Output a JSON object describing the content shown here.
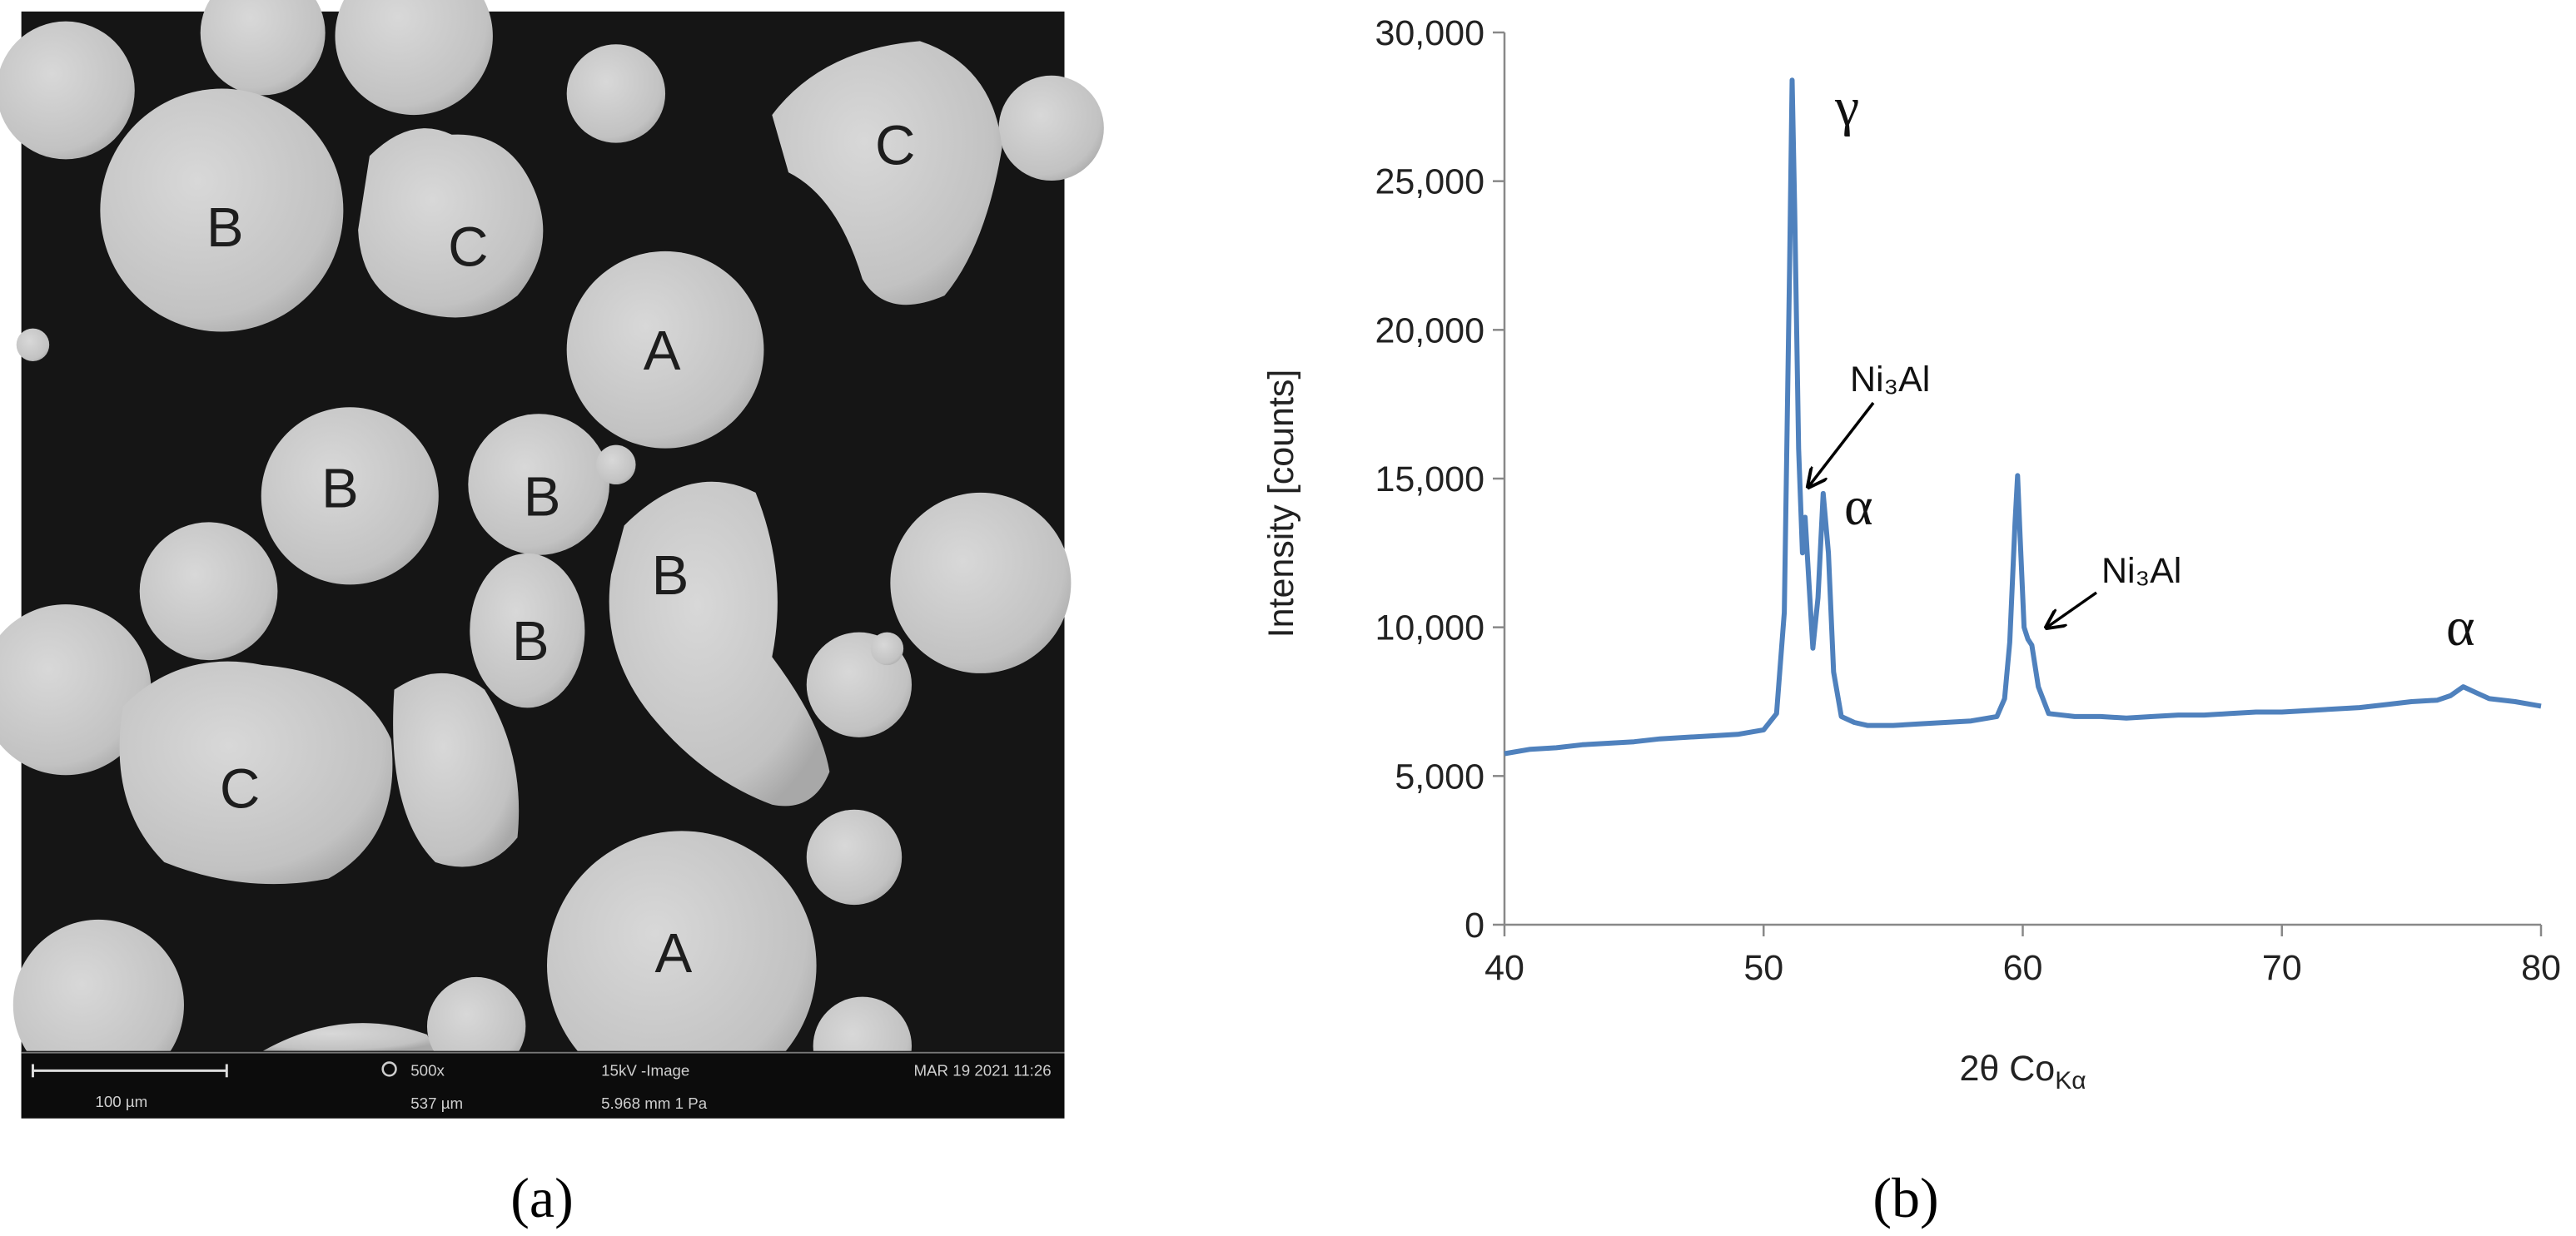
{
  "panel_a": {
    "labels": [
      "B",
      "C",
      "A",
      "B",
      "B",
      "B",
      "B",
      "C",
      "A",
      "C"
    ],
    "scale_bar": "100 µm",
    "magnification": "500x",
    "field_width": "537 µm",
    "mode": "15kV -Image",
    "working": "5.968 mm   1 Pa",
    "date": "MAR 19 2021 11:26"
  },
  "captions": [
    "(a)",
    "(b)"
  ],
  "chart_data": {
    "type": "line",
    "ylabel": "Intensity [counts]",
    "xlabel": {
      "text": "2θ Co",
      "subscript": "Kα"
    },
    "annotations": [
      "γ",
      "Ni₃Al",
      "α",
      "Ni₃Al",
      "α"
    ],
    "color": "#4f81bd",
    "xlim": [
      40,
      80
    ],
    "xticks": [
      40,
      50,
      60,
      70,
      80
    ],
    "ylim": [
      0,
      30000
    ],
    "yticks": [
      0,
      {
        "value": 5000,
        "label": "5,000"
      },
      {
        "value": 10000,
        "label": "10,000"
      },
      {
        "value": 15000,
        "label": "15,000"
      },
      {
        "value": 20000,
        "label": "20,000"
      },
      {
        "value": 25000,
        "label": "25,000"
      },
      {
        "value": 30000,
        "label": "30,000"
      }
    ],
    "x": [
      40,
      41,
      42,
      43,
      44,
      45,
      46,
      47,
      48,
      49,
      50,
      50.5,
      50.8,
      51,
      51.1,
      51.2,
      51.35,
      51.5,
      51.6,
      51.75,
      51.9,
      52.1,
      52.3,
      52.5,
      52.7,
      53,
      53.5,
      54,
      55,
      56,
      57,
      58,
      59,
      59.3,
      59.5,
      59.7,
      59.8,
      59.9,
      60.05,
      60.2,
      60.35,
      60.6,
      61,
      62,
      63,
      64,
      65,
      66,
      67,
      68,
      69,
      70,
      71,
      72,
      73,
      74,
      75,
      76,
      76.5,
      77,
      77.5,
      78,
      79,
      80
    ],
    "values": [
      5750,
      5900,
      5950,
      6050,
      6100,
      6150,
      6250,
      6300,
      6350,
      6400,
      6550,
      7100,
      10500,
      22000,
      28400,
      24000,
      16000,
      12500,
      13700,
      11500,
      9300,
      11000,
      14500,
      12500,
      8500,
      7000,
      6800,
      6700,
      6700,
      6750,
      6800,
      6850,
      7000,
      7600,
      9500,
      13500,
      15100,
      13000,
      10000,
      9600,
      9400,
      8000,
      7100,
      7000,
      7000,
      6950,
      7000,
      7050,
      7050,
      7100,
      7150,
      7150,
      7200,
      7250,
      7300,
      7400,
      7500,
      7550,
      7700,
      8000,
      7800,
      7600,
      7500,
      7350
    ]
  }
}
